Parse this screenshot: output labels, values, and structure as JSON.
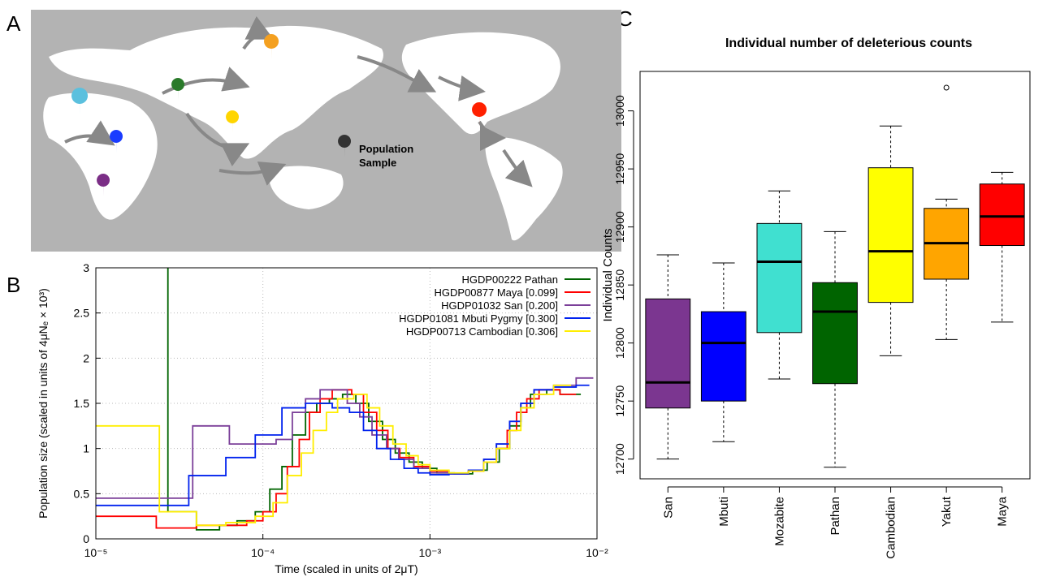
{
  "panel_labels": [
    "A",
    "B",
    "C"
  ],
  "map": {
    "legend_label_lines": [
      "Population",
      "Sample"
    ]
  },
  "chart_data": [
    {
      "type": "step",
      "xlabel": "Time (scaled in units of 2μT)",
      "ylabel": "Population size (scaled in units of 4μNₑ × 10³)",
      "log_x": true,
      "grid": true,
      "legend": "upper right",
      "xlim": [
        1e-05,
        0.01
      ],
      "ylim": [
        0,
        3
      ],
      "xticks": [
        {
          "value": 1e-05,
          "label": "10⁻⁵"
        },
        {
          "value": 0.0001,
          "label": "10⁻⁴"
        },
        {
          "value": 0.001,
          "label": "10⁻³"
        },
        {
          "value": 0.01,
          "label": "10⁻²"
        }
      ],
      "yticks": [
        0,
        0.5,
        1,
        1.5,
        2,
        2.5,
        3
      ],
      "series": [
        {
          "name": "HGDP00222 Pathan",
          "color": "#006400",
          "x": [
            1e-05,
            2.7e-05,
            4e-05,
            5.5e-05,
            7e-05,
            9e-05,
            0.00011,
            0.00013,
            0.00015,
            0.00018,
            0.00021,
            0.00025,
            0.0003,
            0.00036,
            0.00043,
            0.00052,
            0.00062,
            0.00075,
            0.0009,
            0.0011,
            0.0014,
            0.0018,
            0.0022,
            0.0026,
            0.003,
            0.0035,
            0.004,
            0.005,
            0.006,
            0.008
          ],
          "values": [
            5,
            0.3,
            0.1,
            0.15,
            0.2,
            0.3,
            0.55,
            0.8,
            1.15,
            1.4,
            1.5,
            1.55,
            1.6,
            1.5,
            1.3,
            1.1,
            0.95,
            0.85,
            0.78,
            0.73,
            0.72,
            0.76,
            0.85,
            1.0,
            1.25,
            1.45,
            1.6,
            1.65,
            1.6,
            1.6
          ]
        },
        {
          "name": "HGDP00877 Maya [0.099]",
          "color": "#ff0000",
          "x": [
            1e-05,
            2.3e-05,
            4e-05,
            8e-05,
            0.0001,
            0.00012,
            0.00014,
            0.000165,
            0.00019,
            0.00022,
            0.00026,
            0.00034,
            0.0004,
            0.00048,
            0.00056,
            0.00066,
            0.0008,
            0.001,
            0.0013,
            0.0017,
            0.0021,
            0.0025,
            0.0029,
            0.0033,
            0.0038,
            0.0045,
            0.006,
            0.0075
          ],
          "values": [
            0.25,
            0.12,
            0.15,
            0.2,
            0.3,
            0.5,
            0.8,
            1.1,
            1.4,
            1.55,
            1.65,
            1.6,
            1.4,
            1.2,
            1.0,
            0.9,
            0.8,
            0.75,
            0.72,
            0.75,
            0.85,
            1.0,
            1.2,
            1.4,
            1.55,
            1.65,
            1.6,
            1.6
          ]
        },
        {
          "name": "HGDP01032 San [0.200]",
          "color": "#7b3f99",
          "x": [
            1e-05,
            3.8e-05,
            6.3e-05,
            0.00012,
            0.00015,
            0.00018,
            0.00022,
            0.00032,
            0.00038,
            0.00045,
            0.00055,
            0.00065,
            0.0008,
            0.001,
            0.0013,
            0.0017,
            0.0021,
            0.0025,
            0.003,
            0.0035,
            0.0042,
            0.0055,
            0.0075,
            0.0095
          ],
          "values": [
            0.45,
            1.25,
            1.05,
            1.1,
            1.4,
            1.55,
            1.65,
            1.5,
            1.35,
            1.15,
            1.0,
            0.88,
            0.78,
            0.73,
            0.72,
            0.76,
            0.88,
            1.05,
            1.3,
            1.5,
            1.65,
            1.7,
            1.78,
            1.78
          ]
        },
        {
          "name": "HGDP01081 Mbuti Pygmy [0.300]",
          "color": "#0022ee",
          "x": [
            1e-05,
            3.6e-05,
            6e-05,
            9e-05,
            0.00013,
            0.00018,
            0.00026,
            0.00033,
            0.0004,
            0.00048,
            0.00058,
            0.0007,
            0.00085,
            0.001,
            0.0013,
            0.0017,
            0.0021,
            0.0025,
            0.003,
            0.0035,
            0.0042,
            0.0055,
            0.0075,
            0.009
          ],
          "values": [
            0.37,
            0.7,
            0.9,
            1.15,
            1.45,
            1.5,
            1.45,
            1.4,
            1.2,
            1.0,
            0.88,
            0.78,
            0.73,
            0.71,
            0.72,
            0.76,
            0.88,
            1.05,
            1.3,
            1.5,
            1.65,
            1.68,
            1.7,
            1.7
          ]
        },
        {
          "name": "HGDP00713 Cambodian [0.306]",
          "color": "#ffee00",
          "x": [
            1e-05,
            2.4e-05,
            4e-05,
            6e-05,
            9e-05,
            0.000115,
            0.00014,
            0.00017,
            0.0002,
            0.00024,
            0.00028,
            0.00035,
            0.00042,
            0.0005,
            0.0006,
            0.00072,
            0.00085,
            0.001,
            0.0013,
            0.0017,
            0.0021,
            0.0025,
            0.003,
            0.0035,
            0.0042,
            0.0055,
            0.007
          ],
          "values": [
            1.25,
            0.3,
            0.15,
            0.18,
            0.25,
            0.4,
            0.7,
            0.95,
            1.2,
            1.4,
            1.55,
            1.6,
            1.45,
            1.25,
            1.05,
            0.92,
            0.82,
            0.76,
            0.73,
            0.75,
            0.85,
            1.0,
            1.2,
            1.45,
            1.6,
            1.7,
            1.7
          ]
        }
      ]
    },
    {
      "type": "boxplot",
      "title": "Individual number of deleterious counts",
      "ylabel": "Individual Counts",
      "ylim": [
        12683,
        13034
      ],
      "yticks": [
        12700,
        12750,
        12800,
        12850,
        12900,
        12950,
        13000
      ],
      "categories": [
        "San",
        "Mbuti",
        "Mozabite",
        "Pathan",
        "Cambodian",
        "Yakut",
        "Maya"
      ],
      "colors": [
        "#7b3690",
        "#0000ff",
        "#40e0d0",
        "#006400",
        "#ffff00",
        "#ffa500",
        "#ff0000"
      ],
      "min": [
        12700,
        12715,
        12769,
        12693,
        12789,
        12803,
        12818
      ],
      "q1": [
        12744,
        12750,
        12809,
        12765,
        12835,
        12855,
        12884
      ],
      "median": [
        12766,
        12800,
        12870,
        12827,
        12879,
        12886,
        12909
      ],
      "q3": [
        12838,
        12827,
        12903,
        12852,
        12951,
        12916,
        12937
      ],
      "max": [
        12876,
        12869,
        12931,
        12896,
        12987,
        12924,
        12947
      ],
      "outliers": [
        [],
        [],
        [],
        [],
        [],
        [
          13020
        ],
        []
      ]
    }
  ]
}
